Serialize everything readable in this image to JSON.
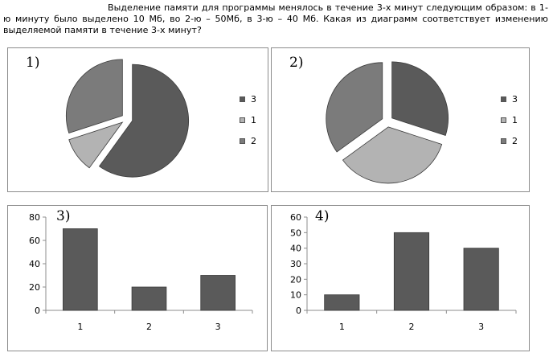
{
  "question": "Выделение памяти для программы менялось в течение 3-х минут следующим образом: в 1-ю минуту было выделено 10 Мб, во 2-ю – 50Мб, в 3-ю – 40 Мб. Какая из диаграмм соответствует изменению выделяемой памяти в течение 3-х минут?",
  "colors": {
    "dark": "#5a5a5a",
    "light": "#b3b3b3",
    "medium": "#7b7b7b",
    "stroke": "#3a3a3a"
  },
  "chart_data": [
    {
      "label": "1)",
      "type": "pie",
      "slices": [
        {
          "name": "3",
          "value": 60,
          "color": "#5a5a5a"
        },
        {
          "name": "1",
          "value": 10,
          "color": "#b3b3b3"
        },
        {
          "name": "2",
          "value": 30,
          "color": "#7b7b7b"
        }
      ],
      "legend": [
        "3",
        "1",
        "2"
      ],
      "legend_position": "right"
    },
    {
      "label": "2)",
      "type": "pie",
      "slices": [
        {
          "name": "3",
          "value": 30,
          "color": "#5a5a5a"
        },
        {
          "name": "1",
          "value": 35,
          "color": "#b3b3b3"
        },
        {
          "name": "2",
          "value": 35,
          "color": "#7b7b7b"
        }
      ],
      "legend": [
        "3",
        "1",
        "2"
      ],
      "legend_position": "right"
    },
    {
      "label": "3)",
      "type": "bar",
      "categories": [
        "1",
        "2",
        "3"
      ],
      "values": [
        70,
        20,
        30
      ],
      "ylim": [
        0,
        80
      ],
      "yticks": [
        0,
        20,
        40,
        60,
        80
      ],
      "grid": false,
      "color": "#5a5a5a"
    },
    {
      "label": "4)",
      "type": "bar",
      "categories": [
        "1",
        "2",
        "3"
      ],
      "values": [
        10,
        50,
        40
      ],
      "ylim": [
        0,
        60
      ],
      "yticks": [
        0,
        10,
        20,
        30,
        40,
        50,
        60
      ],
      "grid": false,
      "color": "#5a5a5a"
    }
  ]
}
